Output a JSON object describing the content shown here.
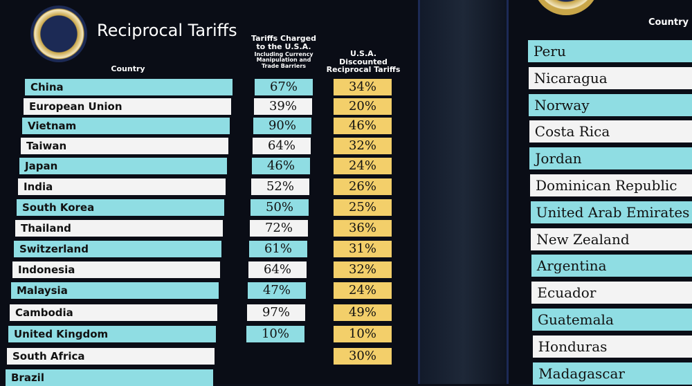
{
  "left_board": {
    "title": "Reciprocal Tariffs",
    "headers": {
      "country": "Country",
      "charged": "Tariffs Charged to the U.S.A.",
      "charged_note": "Including Currency Manipulation and Trade Barriers",
      "discounted": "U.S.A. Discounted Reciprocal Tariffs"
    },
    "rows": [
      {
        "country": "China",
        "charged": "67%",
        "discounted": "34%"
      },
      {
        "country": "European Union",
        "charged": "39%",
        "discounted": "20%"
      },
      {
        "country": "Vietnam",
        "charged": "90%",
        "discounted": "46%"
      },
      {
        "country": "Taiwan",
        "charged": "64%",
        "discounted": "32%"
      },
      {
        "country": "Japan",
        "charged": "46%",
        "discounted": "24%"
      },
      {
        "country": "India",
        "charged": "52%",
        "discounted": "26%"
      },
      {
        "country": "South Korea",
        "charged": "50%",
        "discounted": "25%"
      },
      {
        "country": "Thailand",
        "charged": "72%",
        "discounted": "36%"
      },
      {
        "country": "Switzerland",
        "charged": "61%",
        "discounted": "31%"
      },
      {
        "country": "Indonesia",
        "charged": "64%",
        "discounted": "32%"
      },
      {
        "country": "Malaysia",
        "charged": "47%",
        "discounted": "24%"
      },
      {
        "country": "Cambodia",
        "charged": "97%",
        "discounted": "49%"
      },
      {
        "country": "United Kingdom",
        "charged": "10%",
        "discounted": "10%"
      },
      {
        "country": "South Africa",
        "discounted": "30%"
      },
      {
        "country": "Brazil"
      }
    ]
  },
  "right_board": {
    "header": "Country",
    "countries": [
      "Peru",
      "Nicaragua",
      "Norway",
      "Costa Rica",
      "Jordan",
      "Dominican Republic",
      "United Arab Emirates",
      "New Zealand",
      "Argentina",
      "Ecuador",
      "Guatemala",
      "Honduras",
      "Madagascar"
    ]
  }
}
